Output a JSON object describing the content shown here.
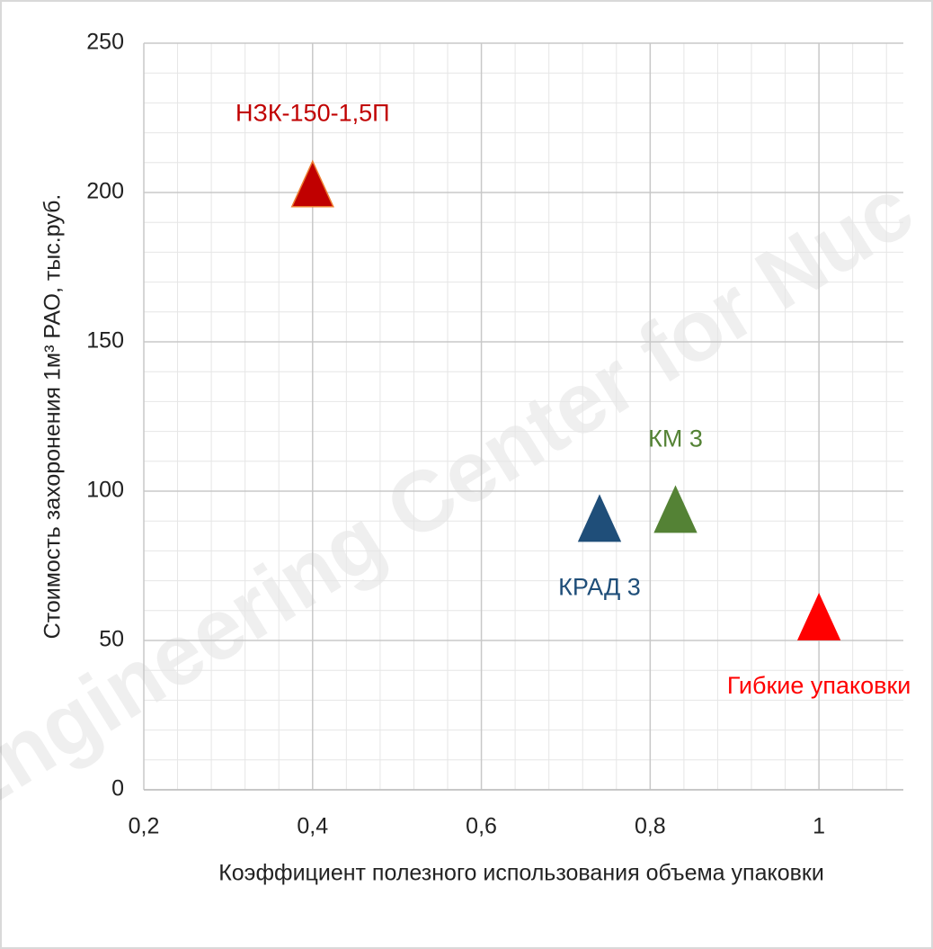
{
  "chart_data": {
    "type": "scatter",
    "x_label": "Коэффициент полезного использования объема упаковки",
    "y_label": "Стоимость захоронения 1м³ РАО, тыс.руб.",
    "watermark": "Engineering Center for Nuc",
    "xlim": [
      0.2,
      1.1
    ],
    "xticks": [
      {
        "value": 0.2,
        "label": "0,2"
      },
      {
        "value": 0.4,
        "label": "0,4"
      },
      {
        "value": 0.6,
        "label": "0,6"
      },
      {
        "value": 0.8,
        "label": "0,8"
      },
      1
    ],
    "ylim": [
      0,
      250
    ],
    "yticks": [
      0,
      50,
      100,
      150,
      200,
      250
    ],
    "grid": true,
    "minor_grid": true,
    "marker": "triangle",
    "series": [
      {
        "name": "НЗК-150-1,5П",
        "color": "#c00000",
        "x": [
          0.4
        ],
        "values": [
          202
        ],
        "label_position": "above"
      },
      {
        "name": "КРАД 3",
        "color": "#1f4e79",
        "x": [
          0.74
        ],
        "values": [
          90
        ],
        "label_position": "below"
      },
      {
        "name": "КМ 3",
        "color": "#548235",
        "x": [
          0.83
        ],
        "values": [
          93
        ],
        "label_position": "above"
      },
      {
        "name": "Гибкие упаковки",
        "color": "#ff0000",
        "x": [
          1
        ],
        "values": [
          57
        ],
        "label_position": "below"
      }
    ]
  }
}
